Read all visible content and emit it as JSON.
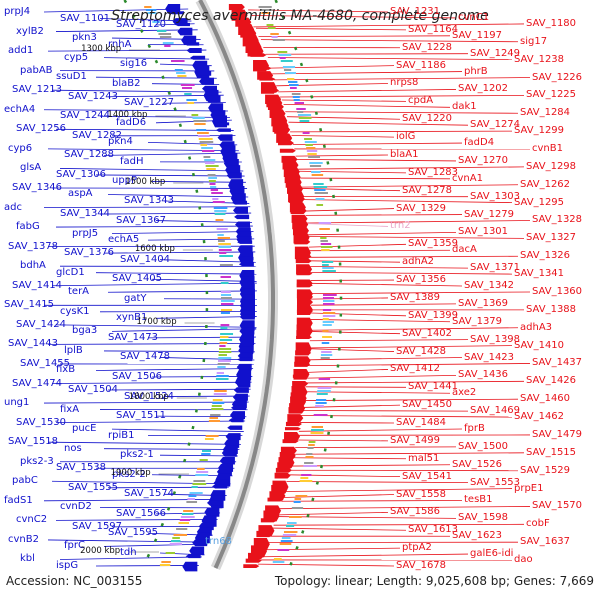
{
  "title": "Streptomyces avermitilis MA-4680, complete genome",
  "footer": {
    "accession": "Accession: NC_003155",
    "topology": "Topology: linear; Length: 9,025,608 bp; Genes: 7,669"
  },
  "colors": {
    "forward": "#e8121a",
    "reverse": "#1111cc",
    "rna": "#9aa6c8",
    "axis": "#888888",
    "tick": "#2b8a2b",
    "trna": "#e9a6c8"
  },
  "kbp_ticks": [
    "1300 kbp",
    "1400 kbp",
    "1500 kbp",
    "1600 kbp",
    "1700 kbp",
    "1800 kbp",
    "1900 kbp",
    "2000 kbp"
  ],
  "left_genes": [
    "prpJ4",
    "SAV_1101",
    "SAV_1120",
    "xylB2",
    "pkn3",
    "rnhA",
    "add1",
    "cyp5",
    "sig16",
    "pabAB",
    "ssuD1",
    "blaB2",
    "SAV_1213",
    "SAV_1243",
    "SAV_1227",
    "echA4",
    "SAV_1244",
    "fadD6",
    "SAV_1256",
    "SAV_1282",
    "pkn4",
    "cyp6",
    "SAV_1288",
    "fadH",
    "glsA",
    "SAV_1306",
    "uppP",
    "SAV_1346",
    "aspA",
    "SAV_1343",
    "adc",
    "SAV_1344",
    "SAV_1367",
    "fabG",
    "prpJ5",
    "echA5",
    "SAV_1378",
    "SAV_1376",
    "SAV_1404",
    "bdhA",
    "glcD1",
    "SAV_1405",
    "SAV_1414",
    "terA",
    "gatY",
    "SAV_1415",
    "cysK1",
    "xynB1",
    "SAV_1424",
    "bga3",
    "SAV_1473",
    "SAV_1443",
    "lplB",
    "SAV_1478",
    "SAV_1455",
    "fixB",
    "SAV_1506",
    "SAV_1474",
    "SAV_1504",
    "SAV_1524",
    "ung1",
    "fixA",
    "SAV_1511",
    "SAV_1530",
    "pucE",
    "rpiB1",
    "SAV_1518",
    "nos",
    "pks2-1",
    "pks2-3",
    "SAV_1538",
    "pks2-2",
    "pabC",
    "SAV_1555",
    "SAV_1574",
    "fadS1",
    "cvnD2",
    "SAV_1566",
    "cvnC2",
    "SAV_1597",
    "SAV_1595",
    "cvnB2",
    "fprC",
    "tdh",
    "kbl",
    "ispG"
  ],
  "right_genes": [
    "SAV_1231",
    "cvnC1",
    "SAV_1180",
    "SAV_1164",
    "SAV_1197",
    "sig17",
    "SAV_1228",
    "SAV_1249",
    "SAV_1238",
    "SAV_1186",
    "phrB",
    "SAV_1226",
    "nrps8",
    "SAV_1202",
    "SAV_1225",
    "cpdA",
    "dak1",
    "SAV_1284",
    "SAV_1220",
    "SAV_1274",
    "SAV_1299",
    "iolG",
    "fadD4",
    "cvnB1",
    "blaA1",
    "SAV_1270",
    "SAV_1298",
    "SAV_1283",
    "cvnA1",
    "SAV_1262",
    "SAV_1278",
    "SAV_1303",
    "SAV_1295",
    "SAV_1329",
    "SAV_1279",
    "SAV_1328",
    "trn2",
    "SAV_1301",
    "SAV_1327",
    "SAV_1359",
    "dacA",
    "SAV_1326",
    "adhA2",
    "SAV_1371",
    "SAV_1341",
    "SAV_1356",
    "SAV_1342",
    "SAV_1360",
    "SAV_1389",
    "SAV_1369",
    "SAV_1388",
    "SAV_1399",
    "SAV_1379",
    "adhA3",
    "SAV_1402",
    "SAV_1398",
    "SAV_1410",
    "SAV_1428",
    "SAV_1423",
    "SAV_1437",
    "SAV_1412",
    "SAV_1436",
    "SAV_1426",
    "SAV_1441",
    "axe2",
    "SAV_1460",
    "SAV_1450",
    "SAV_1469",
    "SAV_1462",
    "SAV_1484",
    "fprB",
    "SAV_1479",
    "SAV_1499",
    "SAV_1500",
    "SAV_1515",
    "mal51",
    "SAV_1526",
    "SAV_1529",
    "SAV_1541",
    "SAV_1553",
    "prpE1",
    "SAV_1558",
    "tesB1",
    "SAV_1570",
    "SAV_1586",
    "SAV_1598",
    "cobF",
    "SAV_1613",
    "SAV_1623",
    "SAV_1637",
    "ptpA2",
    "galE6-idi",
    "dao",
    "SAV_1678"
  ],
  "rna_labels": [
    "trn68"
  ]
}
